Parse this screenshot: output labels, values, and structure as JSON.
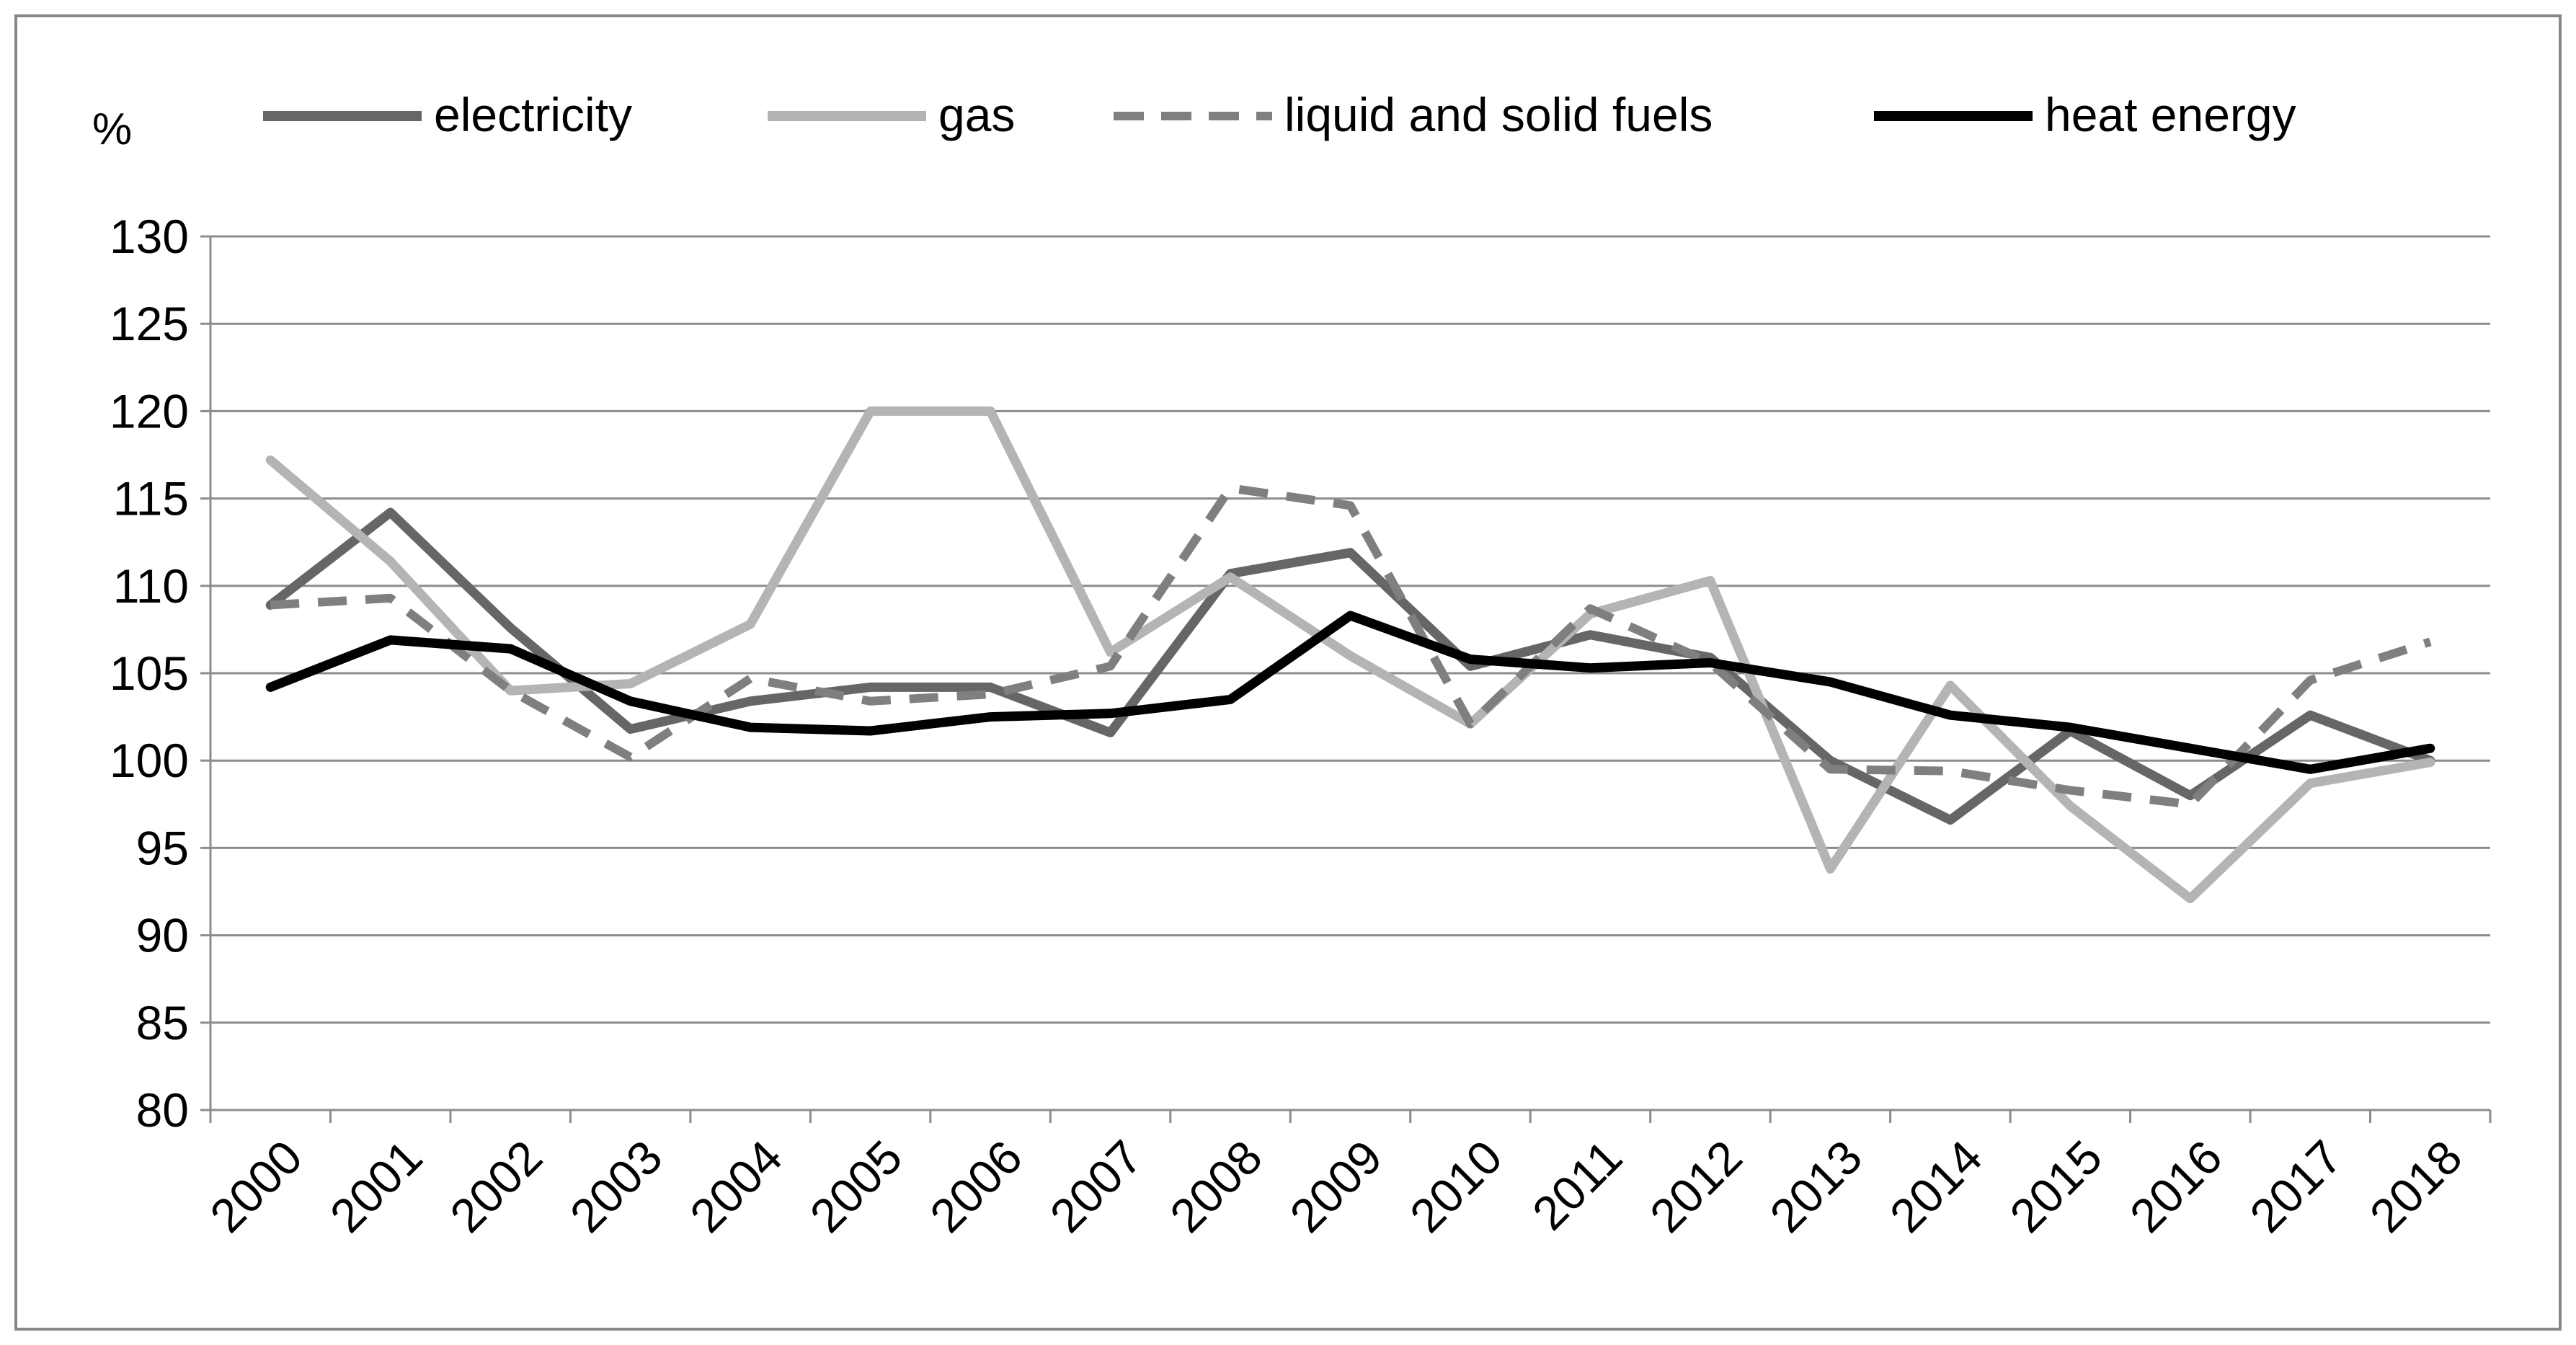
{
  "chart_data": {
    "type": "line",
    "title": "",
    "xlabel": "",
    "ylabel": "%",
    "ylim": [
      80,
      130
    ],
    "ytick_step": 5,
    "grid": "horizontal",
    "legend_position": "top",
    "x": [
      "2000",
      "2001",
      "2002",
      "2003",
      "2004",
      "2005",
      "2006",
      "2007",
      "2008",
      "2009",
      "2010",
      "2011",
      "2012",
      "2013",
      "2014",
      "2015",
      "2016",
      "2017",
      "2018"
    ],
    "series": [
      {
        "name": "electricity",
        "color": "#666666",
        "dash": "solid",
        "values": [
          108.9,
          114.2,
          107.6,
          101.8,
          103.4,
          104.2,
          104.2,
          101.6,
          110.7,
          111.9,
          105.4,
          107.2,
          105.9,
          100.0,
          96.6,
          101.7,
          98.0,
          102.6,
          100.0
        ]
      },
      {
        "name": "gas",
        "color": "#b4b4b4",
        "dash": "solid",
        "values": [
          117.2,
          111.4,
          104.0,
          104.4,
          107.8,
          120.0,
          120.0,
          106.2,
          110.5,
          106.0,
          102.1,
          108.4,
          110.3,
          93.8,
          104.3,
          97.4,
          92.1,
          98.7,
          99.9
        ]
      },
      {
        "name": "liquid and solid fuels",
        "color": "#7f7f7f",
        "dash": "dashed",
        "values": [
          108.9,
          109.3,
          104.0,
          100.2,
          104.7,
          103.4,
          103.8,
          105.4,
          115.6,
          114.6,
          102.1,
          108.7,
          105.6,
          99.5,
          99.4,
          98.3,
          97.5,
          104.6,
          106.8
        ]
      },
      {
        "name": "heat energy",
        "color": "#000000",
        "dash": "solid",
        "values": [
          104.2,
          106.9,
          106.4,
          103.4,
          101.9,
          101.7,
          102.5,
          102.7,
          103.5,
          108.3,
          105.8,
          105.3,
          105.6,
          104.5,
          102.6,
          101.9,
          100.7,
          99.5,
          100.7
        ]
      }
    ]
  }
}
